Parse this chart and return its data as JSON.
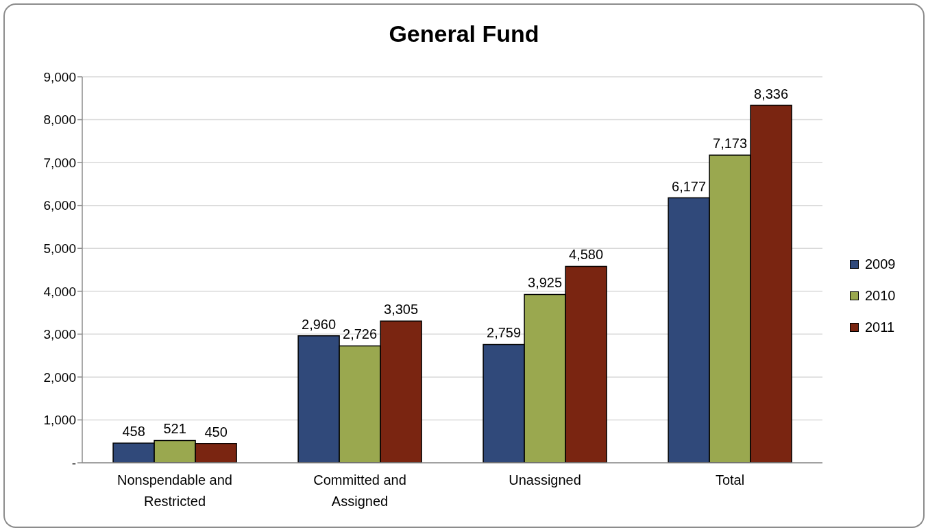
{
  "chart_data": {
    "type": "bar",
    "title": "General Fund",
    "categories": [
      "Nonspendable and Restricted",
      "Committed and Assigned",
      "Unassigned",
      "Total"
    ],
    "series": [
      {
        "name": "2009",
        "color": "#30497a",
        "values": [
          458,
          2960,
          2759,
          6177
        ],
        "value_labels": [
          "458",
          "2,960",
          "2,759",
          "6,177"
        ]
      },
      {
        "name": "2010",
        "color": "#9aa84f",
        "values": [
          521,
          2726,
          3925,
          7173
        ],
        "value_labels": [
          "521",
          "2,726",
          "3,925",
          "7,173"
        ]
      },
      {
        "name": "2011",
        "color": "#7a2511",
        "values": [
          450,
          3305,
          4580,
          8336
        ],
        "value_labels": [
          "450",
          "3,305",
          "4,580",
          "8,336"
        ]
      }
    ],
    "ylim": [
      0,
      9000
    ],
    "yticks": [
      {
        "value": 0,
        "label": "-"
      },
      {
        "value": 1000,
        "label": "1,000"
      },
      {
        "value": 2000,
        "label": "2,000"
      },
      {
        "value": 3000,
        "label": "3,000"
      },
      {
        "value": 4000,
        "label": "4,000"
      },
      {
        "value": 5000,
        "label": "5,000"
      },
      {
        "value": 6000,
        "label": "6,000"
      },
      {
        "value": 7000,
        "label": "7,000"
      },
      {
        "value": 8000,
        "label": "8,000"
      },
      {
        "value": 9000,
        "label": "9,000"
      }
    ],
    "grid": "y",
    "legend": "right"
  }
}
